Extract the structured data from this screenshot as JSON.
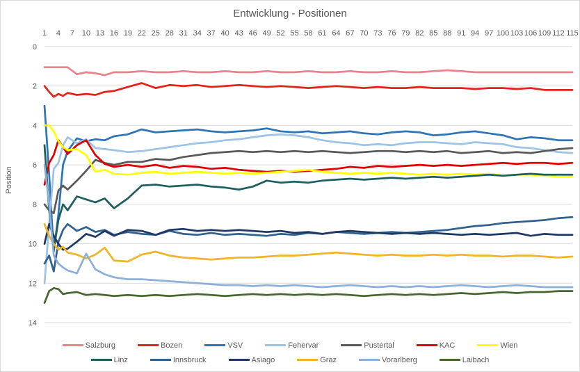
{
  "title": "Entwicklung - Positionen",
  "y_axis_title": "Position",
  "chart_data": {
    "type": "line",
    "title": "Entwicklung - Positionen",
    "xlabel": "",
    "ylabel": "Position",
    "ylim": [
      0,
      14
    ],
    "y_increases_downward": true,
    "grid": "horizontal",
    "legend_position": "bottom",
    "y_ticks": [
      0,
      2,
      4,
      6,
      8,
      10,
      12,
      14
    ],
    "x_label_ticks": [
      1,
      4,
      7,
      10,
      13,
      16,
      19,
      22,
      25,
      28,
      31,
      34,
      37,
      40,
      43,
      46,
      49,
      52,
      55,
      58,
      61,
      64,
      67,
      70,
      73,
      76,
      79,
      82,
      85,
      88,
      91,
      94,
      97,
      100,
      103,
      106,
      109,
      112,
      115
    ],
    "x": [
      1,
      2,
      3,
      4,
      5,
      6,
      8,
      10,
      12,
      14,
      16,
      19,
      22,
      25,
      28,
      31,
      34,
      37,
      40,
      43,
      46,
      49,
      52,
      55,
      58,
      61,
      64,
      67,
      70,
      73,
      76,
      79,
      82,
      85,
      88,
      91,
      94,
      97,
      100,
      103,
      106,
      109,
      112,
      115
    ],
    "series": [
      {
        "name": "Salzburg",
        "color": "#E8848B",
        "values": [
          1.05,
          1.05,
          1.05,
          1.05,
          1.05,
          1.05,
          1.4,
          1.3,
          1.35,
          1.45,
          1.3,
          1.3,
          1.25,
          1.3,
          1.3,
          1.25,
          1.3,
          1.3,
          1.25,
          1.3,
          1.3,
          1.25,
          1.3,
          1.3,
          1.25,
          1.3,
          1.3,
          1.25,
          1.3,
          1.3,
          1.25,
          1.3,
          1.3,
          1.25,
          1.2,
          1.25,
          1.3,
          1.3,
          1.3,
          1.3,
          1.3,
          1.3,
          1.3,
          1.3
        ]
      },
      {
        "name": "Bozen",
        "color": "#E2231B",
        "values": [
          2.0,
          2.3,
          2.55,
          2.4,
          2.5,
          2.35,
          2.45,
          2.4,
          2.45,
          2.3,
          2.25,
          2.05,
          1.85,
          2.1,
          1.95,
          2.0,
          1.95,
          2.05,
          2.0,
          1.95,
          2.0,
          2.05,
          2.0,
          2.05,
          2.1,
          2.05,
          2.0,
          2.05,
          2.1,
          2.05,
          2.1,
          2.1,
          2.05,
          2.1,
          2.1,
          2.1,
          2.15,
          2.1,
          2.1,
          2.15,
          2.1,
          2.2,
          2.2,
          2.2
        ]
      },
      {
        "name": "VSV",
        "color": "#2E75B6",
        "values": [
          3,
          6.5,
          10.4,
          8.5,
          6.0,
          5.3,
          4.65,
          4.8,
          4.7,
          4.75,
          4.55,
          4.45,
          4.2,
          4.35,
          4.3,
          4.25,
          4.2,
          4.3,
          4.35,
          4.3,
          4.25,
          4.15,
          4.3,
          4.35,
          4.3,
          4.4,
          4.35,
          4.3,
          4.4,
          4.45,
          4.35,
          4.3,
          4.35,
          4.5,
          4.45,
          4.35,
          4.3,
          4.4,
          4.5,
          4.7,
          4.6,
          4.65,
          4.75,
          4.75
        ]
      },
      {
        "name": "Fehervar",
        "color": "#9DC3E6",
        "values": [
          12,
          9.0,
          6.2,
          5.9,
          5.0,
          4.6,
          4.9,
          4.7,
          5.15,
          5.2,
          5.25,
          5.35,
          5.3,
          5.2,
          5.1,
          5.0,
          4.9,
          4.85,
          4.75,
          4.7,
          4.6,
          4.5,
          4.45,
          4.5,
          4.6,
          4.75,
          4.85,
          4.9,
          5.0,
          4.95,
          5.0,
          4.9,
          4.85,
          4.85,
          4.9,
          4.95,
          4.85,
          4.9,
          4.95,
          5.1,
          5.15,
          5.25,
          5.35,
          5.4
        ]
      },
      {
        "name": "Pustertal",
        "color": "#595959",
        "values": [
          8,
          8.3,
          8.45,
          7.3,
          7.05,
          7.25,
          6.8,
          6.3,
          5.75,
          5.9,
          6.0,
          5.85,
          5.85,
          5.7,
          5.75,
          5.6,
          5.5,
          5.4,
          5.35,
          5.3,
          5.35,
          5.3,
          5.35,
          5.3,
          5.35,
          5.3,
          5.35,
          5.4,
          5.35,
          5.3,
          5.3,
          5.35,
          5.3,
          5.35,
          5.3,
          5.4,
          5.35,
          5.3,
          5.4,
          5.35,
          5.4,
          5.3,
          5.2,
          5.15
        ]
      },
      {
        "name": "KAC",
        "color": "#E00000",
        "values": [
          7,
          5.9,
          5.5,
          4.75,
          5.1,
          5.45,
          5.0,
          4.75,
          5.5,
          5.95,
          6.1,
          6.0,
          6.1,
          6.0,
          6.15,
          6.05,
          6.1,
          6.2,
          6.15,
          6.25,
          6.3,
          6.35,
          6.3,
          6.35,
          6.3,
          6.25,
          6.2,
          6.1,
          6.15,
          6.05,
          6.1,
          6.05,
          6.0,
          6.05,
          6.0,
          6.05,
          6.0,
          5.95,
          5.9,
          5.95,
          5.9,
          5.9,
          5.95,
          5.9
        ]
      },
      {
        "name": "Wien",
        "color": "#FFFF00",
        "values": [
          4,
          4.0,
          4.3,
          4.8,
          5.1,
          5.25,
          5.2,
          5.5,
          6.35,
          6.25,
          6.45,
          6.5,
          6.4,
          6.35,
          6.45,
          6.4,
          6.35,
          6.4,
          6.45,
          6.4,
          6.45,
          6.4,
          6.35,
          6.3,
          6.25,
          6.35,
          6.4,
          6.45,
          6.4,
          6.45,
          6.4,
          6.45,
          6.5,
          6.45,
          6.5,
          6.45,
          6.5,
          6.45,
          6.55,
          6.5,
          6.5,
          6.55,
          6.6,
          6.6
        ]
      },
      {
        "name": "Linz",
        "color": "#1E5F5E",
        "values": [
          5,
          8.3,
          10.3,
          8.8,
          8.0,
          8.3,
          7.6,
          7.75,
          7.9,
          7.7,
          8.2,
          7.7,
          7.05,
          7.0,
          7.1,
          7.05,
          7.0,
          7.1,
          7.15,
          7.25,
          7.1,
          6.8,
          6.9,
          6.85,
          6.9,
          6.8,
          6.75,
          6.7,
          6.75,
          6.7,
          6.65,
          6.7,
          6.65,
          6.6,
          6.65,
          6.6,
          6.55,
          6.5,
          6.55,
          6.5,
          6.45,
          6.5,
          6.5,
          6.5
        ]
      },
      {
        "name": "Innsbruck",
        "color": "#31618F",
        "values": [
          11,
          10.6,
          11.4,
          9.9,
          9.3,
          9.0,
          9.35,
          9.15,
          9.4,
          9.3,
          9.55,
          9.4,
          9.5,
          9.55,
          9.35,
          9.5,
          9.55,
          9.45,
          9.55,
          9.5,
          9.55,
          9.6,
          9.5,
          9.55,
          9.45,
          9.5,
          9.4,
          9.45,
          9.5,
          9.45,
          9.4,
          9.45,
          9.4,
          9.35,
          9.3,
          9.2,
          9.1,
          9.05,
          8.95,
          8.9,
          8.85,
          8.8,
          8.7,
          8.65
        ]
      },
      {
        "name": "Asiago",
        "color": "#1F3864",
        "values": [
          10,
          9.0,
          9.6,
          10.0,
          10.3,
          10.25,
          9.9,
          9.5,
          9.65,
          9.35,
          9.6,
          9.3,
          9.35,
          9.55,
          9.3,
          9.25,
          9.35,
          9.3,
          9.35,
          9.3,
          9.35,
          9.4,
          9.35,
          9.45,
          9.4,
          9.5,
          9.4,
          9.35,
          9.4,
          9.45,
          9.5,
          9.45,
          9.5,
          9.45,
          9.5,
          9.55,
          9.5,
          9.55,
          9.5,
          9.45,
          9.6,
          9.5,
          9.55,
          9.55
        ]
      },
      {
        "name": "Graz",
        "color": "#F0B428",
        "values": [
          9,
          9.6,
          10.0,
          10.3,
          10.15,
          10.45,
          10.55,
          10.75,
          10.55,
          10.2,
          10.85,
          10.9,
          10.55,
          10.4,
          10.6,
          10.7,
          10.75,
          10.8,
          10.75,
          10.7,
          10.7,
          10.65,
          10.6,
          10.6,
          10.55,
          10.5,
          10.45,
          10.5,
          10.55,
          10.6,
          10.55,
          10.6,
          10.6,
          10.55,
          10.6,
          10.55,
          10.6,
          10.6,
          10.65,
          10.6,
          10.6,
          10.65,
          10.7,
          10.65
        ]
      },
      {
        "name": "Vorarlberg",
        "color": "#8CB0D9",
        "values": [
          6,
          8.0,
          10.6,
          11.0,
          11.2,
          11.35,
          11.5,
          10.5,
          11.3,
          11.55,
          11.7,
          11.8,
          11.8,
          11.85,
          11.9,
          11.95,
          12.0,
          12.05,
          12.1,
          12.1,
          12.15,
          12.1,
          12.15,
          12.1,
          12.15,
          12.2,
          12.15,
          12.1,
          12.15,
          12.2,
          12.15,
          12.2,
          12.15,
          12.2,
          12.15,
          12.1,
          12.15,
          12.2,
          12.15,
          12.1,
          12.15,
          12.2,
          12.2,
          12.2
        ]
      },
      {
        "name": "Laibach",
        "color": "#47672E",
        "values": [
          13,
          12.4,
          12.25,
          12.3,
          12.55,
          12.5,
          12.45,
          12.6,
          12.55,
          12.6,
          12.65,
          12.6,
          12.65,
          12.6,
          12.65,
          12.6,
          12.55,
          12.6,
          12.65,
          12.6,
          12.55,
          12.6,
          12.55,
          12.6,
          12.55,
          12.6,
          12.55,
          12.6,
          12.65,
          12.6,
          12.55,
          12.6,
          12.55,
          12.6,
          12.55,
          12.5,
          12.55,
          12.5,
          12.45,
          12.5,
          12.45,
          12.45,
          12.4,
          12.4
        ]
      }
    ]
  }
}
